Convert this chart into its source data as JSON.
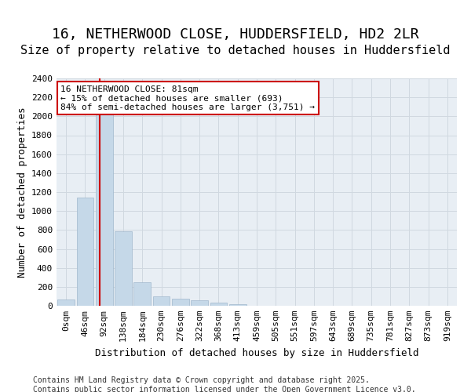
{
  "title_line1": "16, NETHERWOOD CLOSE, HUDDERSFIELD, HD2 2LR",
  "title_line2": "Size of property relative to detached houses in Huddersfield",
  "xlabel": "Distribution of detached houses by size in Huddersfield",
  "ylabel": "Number of detached properties",
  "bin_labels": [
    "0sqm",
    "46sqm",
    "92sqm",
    "138sqm",
    "184sqm",
    "230sqm",
    "276sqm",
    "322sqm",
    "368sqm",
    "413sqm",
    "459sqm",
    "505sqm",
    "551sqm",
    "597sqm",
    "643sqm",
    "689sqm",
    "735sqm",
    "781sqm",
    "827sqm",
    "873sqm",
    "919sqm"
  ],
  "bar_values": [
    70,
    1140,
    2050,
    790,
    250,
    100,
    75,
    55,
    30,
    20,
    0,
    0,
    0,
    0,
    0,
    0,
    0,
    0,
    0,
    0,
    0
  ],
  "bar_color": "#c5d8e8",
  "bar_edge_color": "#a0b8cc",
  "vline_x_index": 1.75,
  "vline_color": "#cc0000",
  "annotation_text": "16 NETHERWOOD CLOSE: 81sqm\n← 15% of detached houses are smaller (693)\n84% of semi-detached houses are larger (3,751) →",
  "annotation_box_color": "#ffffff",
  "annotation_border_color": "#cc0000",
  "ylim": [
    0,
    2400
  ],
  "yticks": [
    0,
    200,
    400,
    600,
    800,
    1000,
    1200,
    1400,
    1600,
    1800,
    2000,
    2200,
    2400
  ],
  "grid_color": "#d0d8e0",
  "bg_color": "#e8eef4",
  "footer_text": "Contains HM Land Registry data © Crown copyright and database right 2025.\nContains public sector information licensed under the Open Government Licence v3.0.",
  "title_fontsize": 13,
  "subtitle_fontsize": 11,
  "axis_label_fontsize": 9,
  "tick_fontsize": 8,
  "annotation_fontsize": 8,
  "footer_fontsize": 7
}
